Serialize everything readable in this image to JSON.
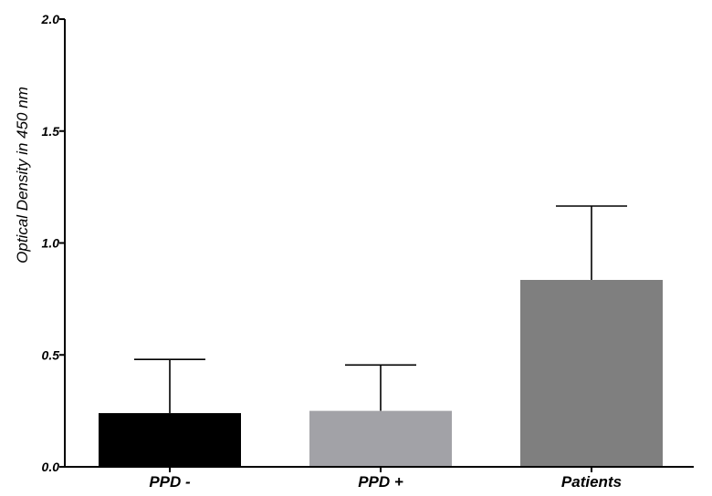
{
  "chart_data": {
    "type": "bar",
    "title": "",
    "xlabel": "",
    "ylabel": "Optical Density in 450 nm",
    "categories": [
      "PPD -",
      "PPD +",
      "Patients"
    ],
    "values": [
      0.24,
      0.25,
      0.835
    ],
    "error_upper": [
      0.48,
      0.455,
      1.165
    ],
    "colors": [
      "#000000",
      "#a2a2a7",
      "#7f7f7f"
    ],
    "ylim": [
      0,
      2.0
    ],
    "yticks": [
      0,
      0.5,
      1.0,
      1.5,
      2.0
    ],
    "ytick_labels": [
      "0.0",
      "0.5",
      "1.0",
      "1.5",
      "2.0"
    ],
    "grid": false,
    "legend": false
  }
}
